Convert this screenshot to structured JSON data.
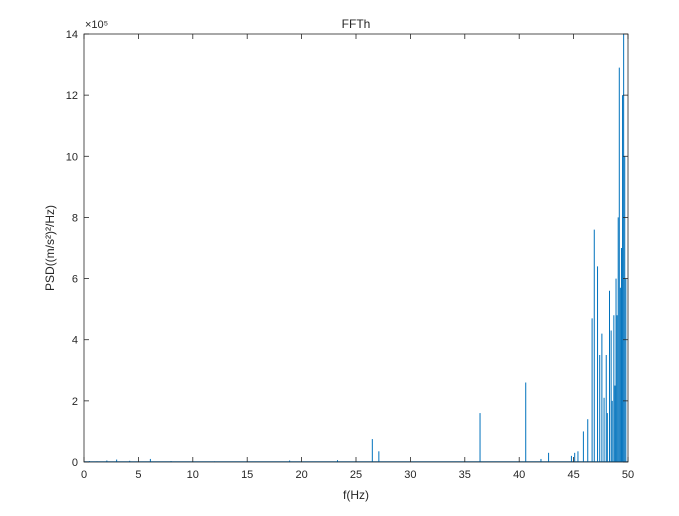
{
  "chart_data": {
    "type": "line",
    "title": "FFTh",
    "xlabel": "f(Hz)",
    "ylabel": "PSD((m/s²)²/Hz)",
    "y_multiplier": "×10⁵",
    "xlim": [
      0,
      50
    ],
    "ylim": [
      0,
      14
    ],
    "x_ticks": [
      0,
      5,
      10,
      15,
      20,
      25,
      30,
      35,
      40,
      45,
      50
    ],
    "y_ticks": [
      0,
      2,
      4,
      6,
      8,
      10,
      12,
      14
    ],
    "grid": false,
    "line_color": "#0072BD",
    "series": [
      {
        "x": [
          0.5,
          1.2,
          2.1,
          3.0,
          4.2,
          6.1,
          8.0,
          12.0,
          18.9,
          23.3,
          26.5,
          27.1,
          36.4,
          40.6,
          42.0,
          42.7,
          44.8,
          45.1,
          45.4,
          45.9,
          46.3,
          46.7,
          46.9,
          47.2,
          47.4,
          47.6,
          47.8,
          48.0,
          48.1,
          48.3,
          48.45,
          48.55,
          48.7,
          48.8,
          48.9,
          49.0,
          49.1,
          49.2,
          49.3,
          49.4,
          49.5,
          49.6,
          49.7,
          49.8
        ],
        "y": [
          0.03,
          0.02,
          0.05,
          0.08,
          0.04,
          0.1,
          0.03,
          0.02,
          0.05,
          0.06,
          0.75,
          0.35,
          1.6,
          2.6,
          0.1,
          0.3,
          0.2,
          0.3,
          0.35,
          1.0,
          1.4,
          4.7,
          7.6,
          6.4,
          3.5,
          4.2,
          2.1,
          3.5,
          1.6,
          5.6,
          4.3,
          2.0,
          4.8,
          2.5,
          6.0,
          4.8,
          8.0,
          12.9,
          5.7,
          7.0,
          12.0,
          14.0,
          10.0,
          6.0
        ]
      }
    ]
  }
}
